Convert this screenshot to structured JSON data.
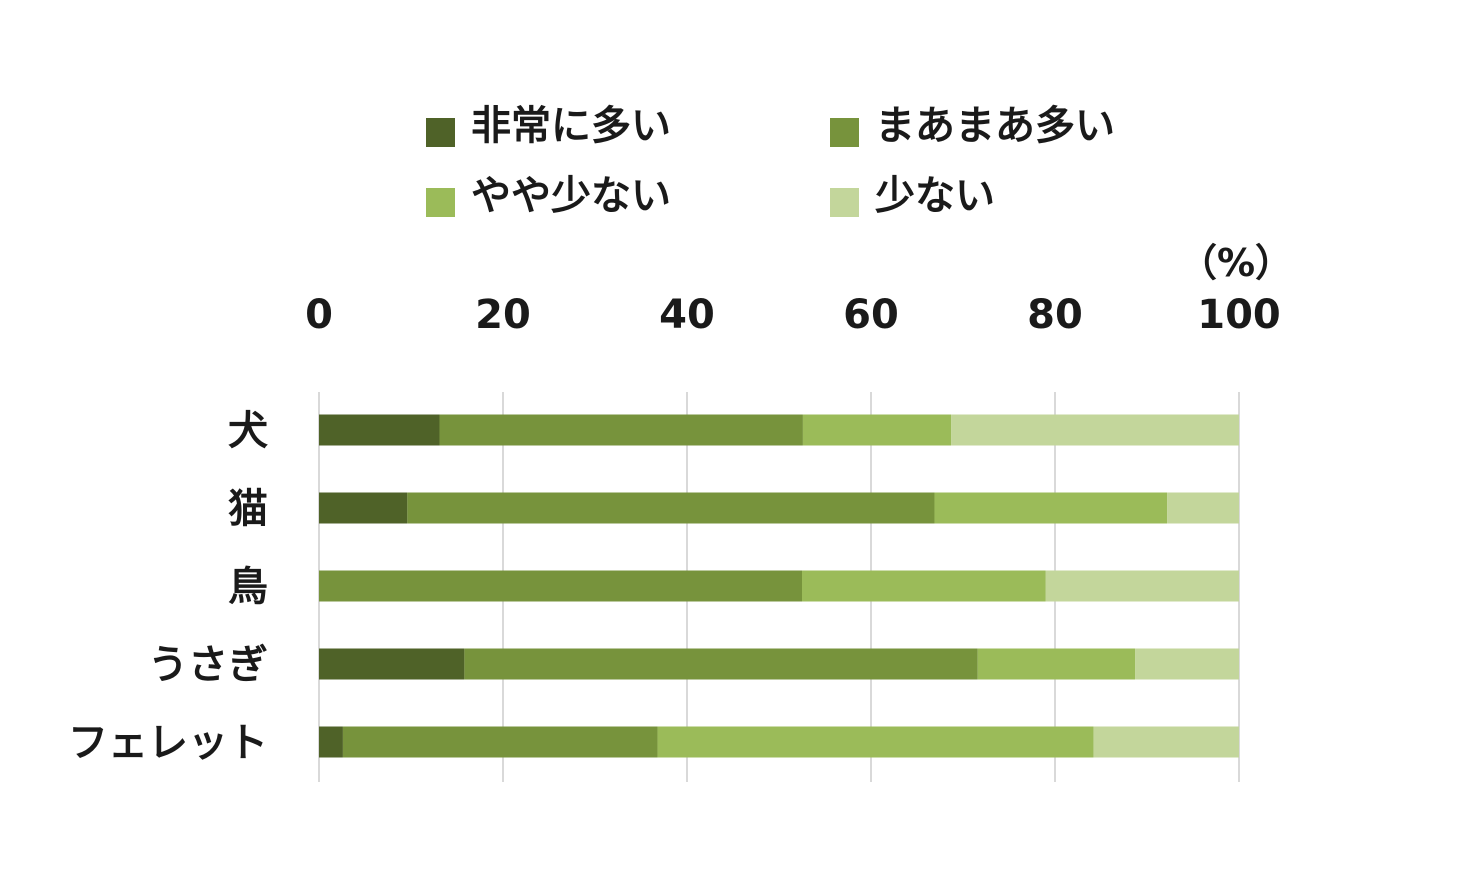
{
  "chart_data": {
    "type": "bar",
    "orientation": "horizontal",
    "stacked": true,
    "unit_label": "（%）",
    "categories": [
      "犬",
      "猫",
      "鳥",
      "うさぎ",
      "フェレット"
    ],
    "series": [
      {
        "name": "非常に多い",
        "color": "#4f6228",
        "values": [
          13.1,
          9.6,
          0.0,
          15.8,
          2.6
        ]
      },
      {
        "name": "まあまあ多い",
        "color": "#77933c",
        "values": [
          39.5,
          57.3,
          52.5,
          55.8,
          34.2
        ]
      },
      {
        "name": "やや少ない",
        "color": "#9bbb59",
        "values": [
          16.1,
          25.3,
          26.5,
          17.1,
          47.4
        ]
      },
      {
        "name": "少ない",
        "color": "#c3d69b",
        "values": [
          31.3,
          7.8,
          21.0,
          11.3,
          15.8
        ]
      }
    ],
    "xlim": [
      0,
      100
    ],
    "xticks": [
      0,
      20,
      40,
      60,
      80,
      100
    ],
    "grid": true,
    "grid_color": "#d9d9d9",
    "legend_position": "top"
  }
}
